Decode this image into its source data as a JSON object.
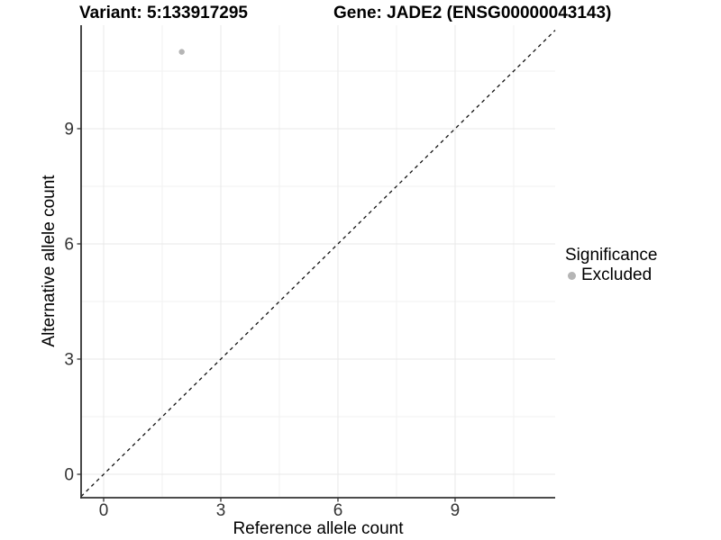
{
  "titles": {
    "variant": "Variant: 5:133917295",
    "gene": "Gene: JADE2 (ENSG00000043143)"
  },
  "chart_data": {
    "type": "scatter",
    "xlabel": "Reference allele count",
    "ylabel": "Alternative allele count",
    "x_ticks": [
      0,
      3,
      6,
      9
    ],
    "y_ticks": [
      0,
      3,
      6,
      9
    ],
    "x_minor_ticks": [
      1.5,
      4.5,
      7.5,
      10.5
    ],
    "y_minor_ticks": [
      1.5,
      4.5,
      7.5,
      10.5
    ],
    "xlim": [
      -0.58,
      11.56
    ],
    "ylim": [
      -0.61,
      11.69
    ],
    "grid": true,
    "points": [
      {
        "x": 2,
        "y": 11,
        "series": "Excluded"
      }
    ],
    "reference_line": {
      "type": "identity",
      "style": "dashed"
    },
    "legend": {
      "title": "Significance",
      "position": "right",
      "entries": [
        {
          "label": "Excluded",
          "color": "#b5b5b5"
        }
      ]
    }
  },
  "colors": {
    "point": "#b5b5b5",
    "axis": "#333333",
    "tick_label": "#333333",
    "grid_major": "#e8e8e8",
    "grid_minor": "#f2f2f2",
    "reference_line": "#111111",
    "background": "#ffffff"
  }
}
